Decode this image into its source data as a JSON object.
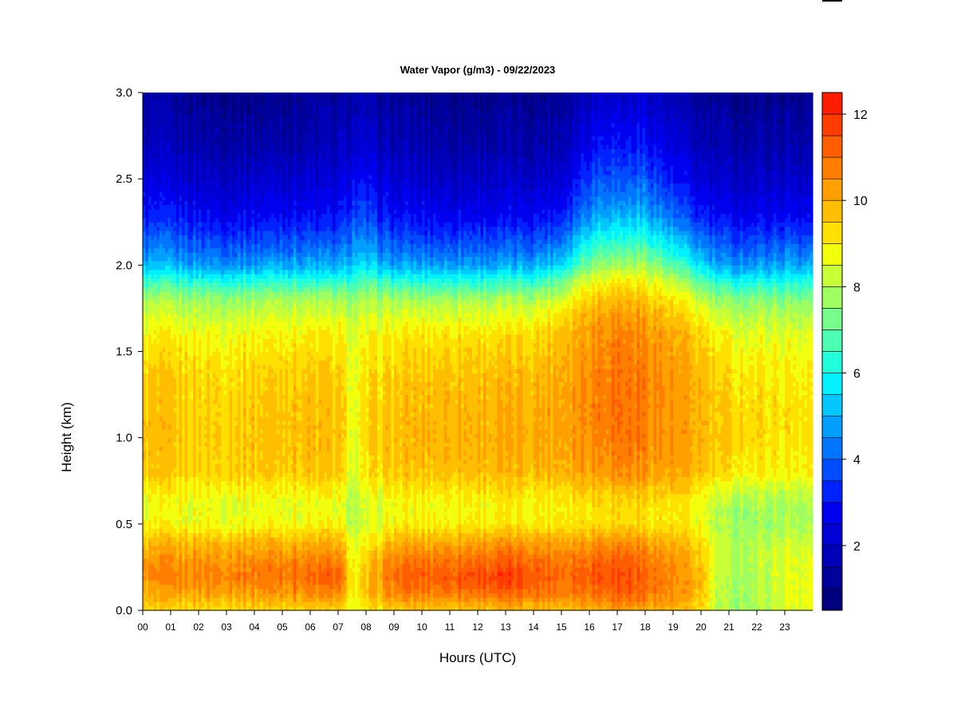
{
  "chart_data": {
    "type": "heatmap",
    "title": "Water Vapor (g/m3) - 09/22/2023",
    "xlabel": "Hours (UTC)",
    "ylabel": "Height (km)",
    "xlim": [
      0,
      24
    ],
    "ylim": [
      0.0,
      3.0
    ],
    "x_ticks": [
      "00",
      "01",
      "02",
      "03",
      "04",
      "05",
      "06",
      "07",
      "08",
      "09",
      "10",
      "11",
      "12",
      "13",
      "14",
      "15",
      "16",
      "17",
      "18",
      "19",
      "20",
      "21",
      "22",
      "23"
    ],
    "y_ticks": [
      "0.0",
      "0.5",
      "1.0",
      "1.5",
      "2.0",
      "2.5",
      "3.0"
    ],
    "heights_km": [
      0.0,
      0.1,
      0.2,
      0.3,
      0.4,
      0.5,
      0.6,
      0.7,
      0.8,
      1.0,
      1.2,
      1.4,
      1.6,
      1.7,
      1.8,
      1.9,
      2.0,
      2.1,
      2.2,
      2.3,
      2.5,
      2.7,
      3.0
    ],
    "profile_hours": [
      0,
      1,
      2,
      3,
      4,
      5,
      6,
      7,
      7.6,
      8.2,
      9,
      10,
      11,
      12,
      13,
      14,
      15,
      15.8,
      16.5,
      17.2,
      18,
      19,
      20,
      20.6,
      21,
      22,
      23,
      24
    ],
    "values": [
      [
        9.2,
        10.0,
        10.4,
        10.2,
        9.6,
        8.8,
        8.6,
        9.0,
        9.6,
        9.7,
        9.6,
        9.4,
        8.8,
        8.4,
        7.8,
        6.5,
        5.0,
        4.3,
        3.6,
        3.0,
        2.4,
        1.8,
        1.4
      ],
      [
        9.2,
        10.1,
        10.6,
        10.3,
        9.7,
        8.8,
        8.6,
        9.0,
        9.5,
        9.6,
        9.5,
        9.4,
        8.9,
        8.4,
        7.8,
        6.5,
        5.0,
        4.2,
        3.6,
        3.0,
        2.2,
        1.7,
        1.2
      ],
      [
        9.3,
        10.2,
        10.7,
        10.4,
        9.8,
        8.8,
        8.6,
        9.0,
        9.4,
        9.5,
        9.4,
        9.3,
        8.8,
        8.3,
        7.8,
        6.4,
        4.8,
        4.0,
        3.4,
        2.8,
        2.1,
        1.6,
        1.1
      ],
      [
        9.4,
        10.3,
        10.8,
        10.4,
        9.8,
        8.8,
        8.6,
        9.0,
        9.5,
        9.6,
        9.5,
        9.3,
        8.8,
        8.3,
        7.7,
        6.3,
        4.7,
        3.9,
        3.3,
        2.7,
        2.0,
        1.5,
        1.0
      ],
      [
        9.4,
        10.3,
        10.9,
        10.5,
        9.9,
        8.9,
        8.6,
        9.0,
        9.6,
        9.7,
        9.6,
        9.4,
        8.9,
        8.4,
        7.8,
        6.4,
        4.8,
        4.0,
        3.3,
        2.8,
        2.1,
        1.5,
        1.0
      ],
      [
        9.4,
        10.4,
        11.0,
        10.6,
        9.9,
        8.9,
        8.7,
        9.0,
        9.6,
        9.8,
        9.7,
        9.5,
        9.0,
        8.5,
        8.0,
        6.6,
        5.0,
        4.1,
        3.5,
        2.9,
        2.2,
        1.6,
        1.1
      ],
      [
        9.4,
        10.5,
        11.1,
        10.6,
        9.9,
        8.9,
        8.6,
        9.0,
        9.6,
        9.8,
        9.7,
        9.5,
        9.0,
        8.5,
        7.9,
        6.5,
        4.9,
        4.1,
        3.4,
        2.9,
        2.2,
        1.6,
        1.2
      ],
      [
        9.3,
        10.6,
        11.3,
        10.7,
        9.9,
        8.8,
        8.5,
        8.9,
        9.5,
        9.7,
        9.6,
        9.4,
        8.9,
        8.4,
        7.8,
        6.4,
        4.8,
        4.0,
        3.4,
        2.8,
        2.2,
        1.7,
        1.2
      ],
      [
        8.6,
        8.8,
        8.8,
        8.6,
        8.4,
        8.1,
        8.0,
        8.2,
        8.4,
        8.6,
        8.6,
        8.6,
        8.4,
        8.2,
        7.6,
        6.6,
        5.4,
        4.8,
        4.2,
        3.6,
        2.8,
        2.2,
        1.6
      ],
      [
        9.0,
        9.8,
        10.0,
        9.6,
        9.0,
        8.4,
        8.3,
        8.7,
        9.2,
        9.4,
        9.3,
        9.2,
        8.8,
        8.4,
        7.9,
        6.8,
        5.4,
        4.6,
        3.9,
        3.3,
        2.6,
        2.0,
        1.4
      ],
      [
        9.5,
        10.6,
        11.1,
        10.6,
        9.9,
        8.9,
        8.7,
        9.1,
        9.6,
        9.7,
        9.6,
        9.4,
        9.0,
        8.5,
        7.8,
        6.4,
        4.8,
        4.0,
        3.4,
        2.8,
        2.2,
        1.7,
        1.2
      ],
      [
        9.6,
        10.8,
        11.3,
        10.8,
        10.0,
        9.0,
        8.8,
        9.2,
        9.7,
        9.9,
        9.8,
        9.6,
        9.1,
        8.6,
        7.9,
        6.4,
        4.8,
        4.0,
        3.3,
        2.8,
        2.1,
        1.6,
        1.1
      ],
      [
        9.6,
        10.9,
        11.4,
        10.9,
        10.1,
        9.0,
        8.8,
        9.2,
        9.8,
        10.0,
        9.9,
        9.7,
        9.2,
        8.6,
        7.9,
        6.4,
        4.8,
        4.0,
        3.3,
        2.7,
        2.0,
        1.5,
        1.1
      ],
      [
        9.7,
        11.0,
        11.6,
        11.0,
        10.2,
        9.1,
        8.9,
        9.3,
        9.8,
        10.0,
        9.9,
        9.7,
        9.2,
        8.6,
        7.9,
        6.4,
        4.8,
        4.0,
        3.3,
        2.7,
        2.0,
        1.5,
        1.0
      ],
      [
        9.7,
        11.1,
        11.8,
        11.1,
        10.3,
        9.1,
        8.9,
        9.3,
        9.8,
        10.0,
        9.9,
        9.7,
        9.2,
        8.6,
        7.9,
        6.5,
        4.9,
        4.0,
        3.3,
        2.7,
        2.0,
        1.5,
        1.0
      ],
      [
        9.7,
        11.0,
        11.4,
        11.0,
        10.2,
        9.1,
        8.9,
        9.3,
        9.9,
        10.1,
        10.0,
        9.8,
        9.3,
        8.7,
        8.0,
        6.6,
        5.0,
        4.1,
        3.4,
        2.8,
        2.1,
        1.5,
        1.0
      ],
      [
        9.8,
        10.9,
        11.2,
        10.9,
        10.2,
        9.2,
        9.0,
        9.4,
        10.0,
        10.2,
        10.2,
        10.1,
        9.8,
        9.3,
        8.6,
        7.3,
        5.6,
        4.6,
        3.8,
        3.1,
        2.3,
        1.7,
        1.2
      ],
      [
        10.0,
        11.0,
        11.3,
        11.0,
        10.3,
        9.3,
        9.2,
        9.7,
        10.3,
        10.5,
        10.6,
        10.5,
        10.3,
        10.0,
        9.5,
        8.6,
        7.2,
        6.2,
        5.2,
        4.4,
        3.4,
        2.6,
        1.8
      ],
      [
        10.1,
        11.2,
        11.6,
        11.2,
        10.5,
        9.4,
        9.3,
        9.8,
        10.5,
        10.8,
        10.9,
        10.8,
        10.6,
        10.3,
        9.8,
        9.0,
        7.8,
        6.8,
        5.8,
        5.0,
        4.0,
        3.2,
        2.2
      ],
      [
        10.2,
        11.3,
        11.6,
        11.2,
        10.5,
        9.4,
        9.3,
        9.9,
        10.6,
        11.0,
        11.0,
        10.9,
        10.7,
        10.4,
        9.9,
        9.1,
        7.8,
        6.8,
        5.8,
        4.9,
        3.8,
        3.0,
        2.0
      ],
      [
        10.1,
        11.0,
        11.2,
        10.9,
        10.3,
        9.3,
        9.3,
        9.8,
        10.4,
        10.7,
        10.8,
        10.7,
        10.5,
        10.2,
        9.7,
        9.0,
        7.9,
        6.9,
        5.9,
        5.0,
        3.9,
        3.1,
        2.1
      ],
      [
        9.8,
        10.4,
        10.5,
        10.3,
        9.8,
        9.1,
        9.0,
        9.5,
        10.1,
        10.3,
        10.3,
        10.2,
        10.0,
        9.6,
        9.1,
        8.2,
        6.9,
        5.8,
        4.8,
        4.0,
        3.0,
        2.3,
        1.6
      ],
      [
        9.3,
        9.8,
        9.8,
        9.6,
        9.3,
        8.8,
        8.7,
        9.1,
        9.7,
        9.9,
        9.9,
        9.8,
        9.4,
        8.9,
        8.2,
        7.0,
        5.5,
        4.6,
        3.8,
        3.1,
        2.3,
        1.7,
        1.2
      ],
      [
        8.0,
        8.0,
        8.1,
        8.2,
        8.2,
        7.9,
        8.0,
        8.4,
        9.2,
        9.5,
        9.5,
        9.3,
        8.8,
        8.3,
        7.6,
        6.3,
        4.8,
        4.0,
        3.4,
        2.8,
        2.1,
        1.6,
        1.1
      ],
      [
        7.8,
        7.8,
        7.9,
        8.0,
        8.0,
        7.8,
        7.9,
        8.4,
        9.2,
        9.5,
        9.4,
        9.2,
        8.7,
        8.2,
        7.5,
        6.2,
        4.7,
        3.9,
        3.3,
        2.7,
        2.0,
        1.5,
        1.0
      ],
      [
        7.9,
        7.9,
        8.0,
        8.1,
        8.0,
        7.7,
        7.8,
        8.3,
        9.0,
        9.3,
        9.3,
        9.1,
        8.6,
        8.1,
        7.5,
        6.2,
        4.7,
        3.9,
        3.3,
        2.7,
        2.0,
        1.5,
        1.0
      ],
      [
        8.5,
        8.6,
        8.6,
        8.5,
        8.3,
        7.9,
        7.9,
        8.3,
        8.9,
        9.2,
        9.2,
        9.0,
        8.6,
        8.1,
        7.5,
        6.3,
        4.9,
        4.1,
        3.4,
        2.8,
        2.1,
        1.6,
        1.1
      ],
      [
        8.7,
        8.8,
        8.7,
        8.6,
        8.4,
        8.0,
        8.0,
        8.4,
        9.0,
        9.2,
        9.2,
        9.0,
        8.6,
        8.1,
        7.5,
        6.3,
        4.9,
        4.1,
        3.4,
        2.8,
        2.1,
        1.6,
        1.1
      ]
    ],
    "colorbar": {
      "min": 0.5,
      "max": 12.5,
      "step": 0.5,
      "ticks": [
        "2",
        "4",
        "6",
        "8",
        "10",
        "12"
      ],
      "colors": [
        "#00007F",
        "#00009B",
        "#0000B8",
        "#0000D4",
        "#0000F0",
        "#0022FF",
        "#004CFF",
        "#0075FF",
        "#009FFF",
        "#00C8FF",
        "#00F2FF",
        "#22FFDD",
        "#4CFFB3",
        "#75FF8A",
        "#9FFF60",
        "#C8FF37",
        "#F2FF0D",
        "#FFE000",
        "#FFBF00",
        "#FF9F00",
        "#FF7E00",
        "#FF5E00",
        "#FF3D00",
        "#FF1D00",
        "#E30000",
        "#B80000",
        "#8E0000"
      ]
    }
  }
}
